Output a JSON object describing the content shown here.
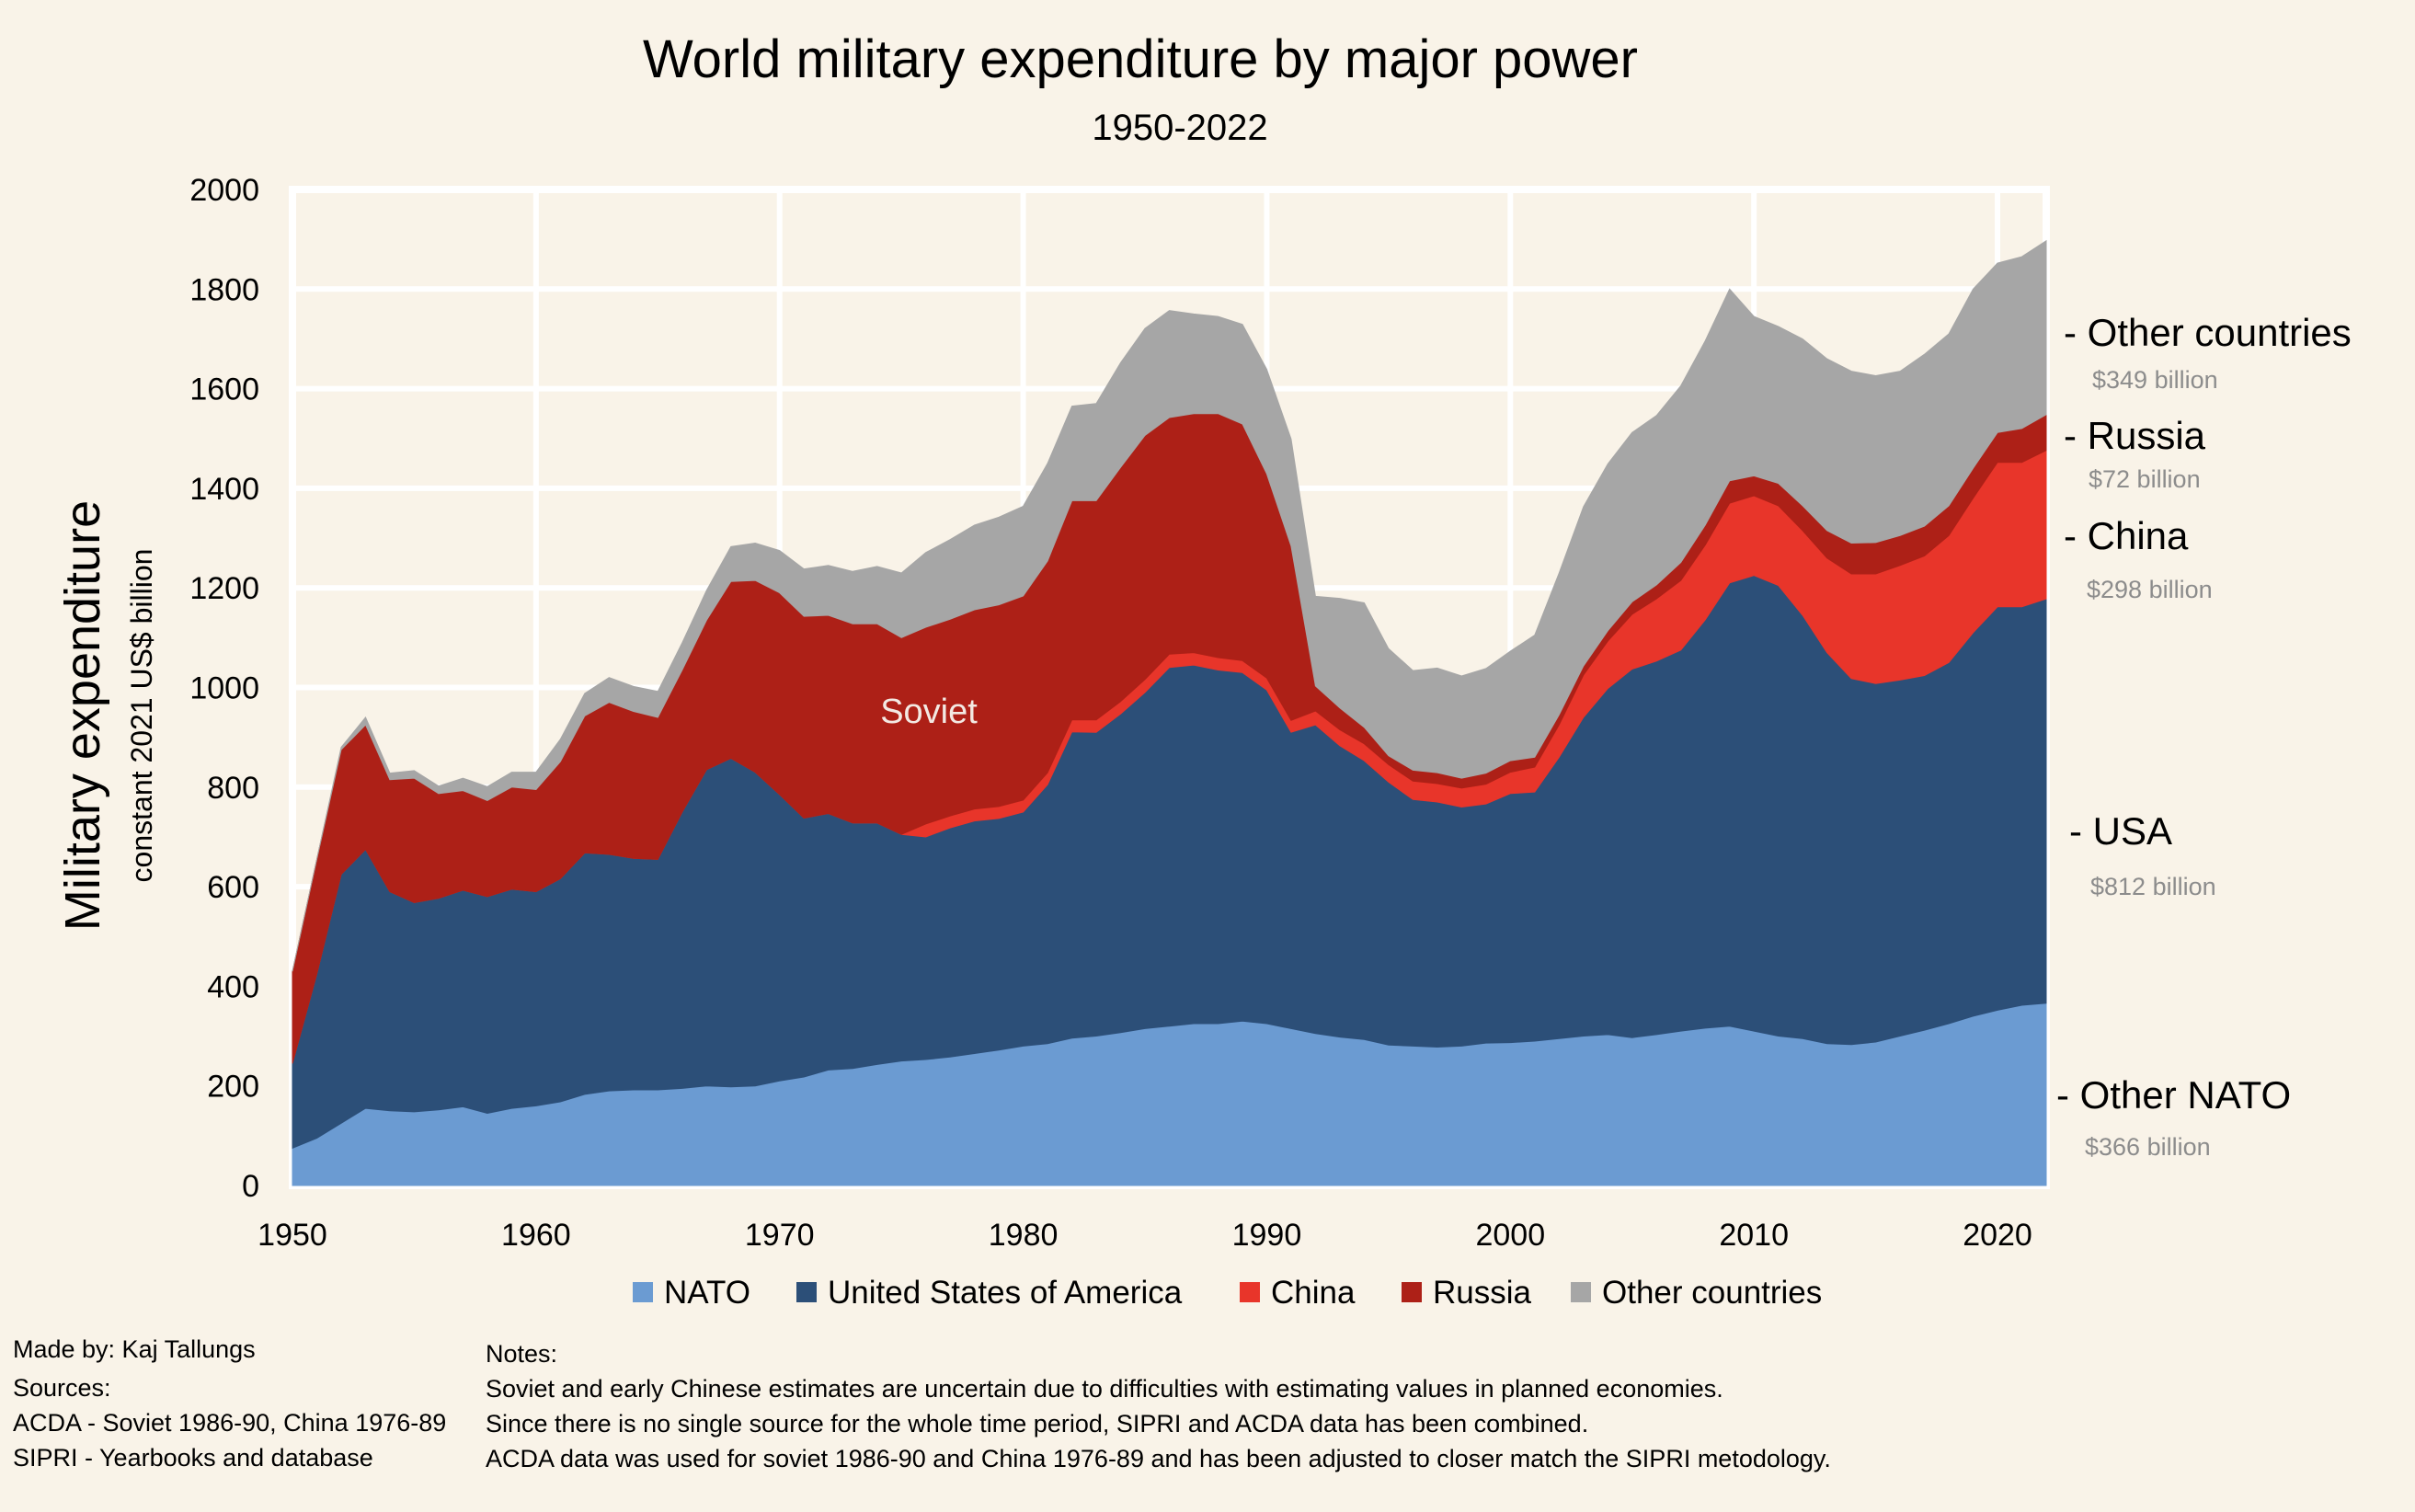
{
  "chart_data": {
    "type": "area",
    "stacked": true,
    "title": "World military expenditure by major power",
    "subtitle": "1950-2022",
    "ylabel": "Military expenditure",
    "ylabel_sub": "constant 2021 US$ billion",
    "xlabel": "",
    "xlim": [
      1950,
      2022
    ],
    "ylim": [
      0,
      2000
    ],
    "x_ticks": [
      1950,
      1960,
      1970,
      1980,
      1990,
      2000,
      2010,
      2020
    ],
    "y_ticks": [
      0,
      200,
      400,
      600,
      800,
      1000,
      1200,
      1400,
      1600,
      1800,
      2000
    ],
    "grid": true,
    "legend_position": "bottom",
    "annotation_soviet": "Soviet",
    "x": [
      1950,
      1951,
      1952,
      1953,
      1954,
      1955,
      1956,
      1957,
      1958,
      1959,
      1960,
      1961,
      1962,
      1963,
      1964,
      1965,
      1966,
      1967,
      1968,
      1969,
      1970,
      1971,
      1972,
      1973,
      1974,
      1975,
      1976,
      1977,
      1978,
      1979,
      1980,
      1981,
      1982,
      1983,
      1984,
      1985,
      1986,
      1987,
      1988,
      1989,
      1990,
      1991,
      1992,
      1993,
      1994,
      1995,
      1996,
      1997,
      1998,
      1999,
      2000,
      2001,
      2002,
      2003,
      2004,
      2005,
      2006,
      2007,
      2008,
      2009,
      2010,
      2011,
      2012,
      2013,
      2014,
      2015,
      2016,
      2017,
      2018,
      2019,
      2020,
      2021,
      2022
    ],
    "series": [
      {
        "name": "NATO",
        "color": "#6b9bd2",
        "values": [
          75,
          95,
          125,
          155,
          150,
          148,
          152,
          158,
          145,
          155,
          160,
          168,
          183,
          190,
          192,
          192,
          195,
          200,
          198,
          200,
          210,
          218,
          232,
          235,
          243,
          250,
          253,
          258,
          265,
          272,
          280,
          285,
          296,
          300,
          307,
          315,
          320,
          325,
          325,
          330,
          325,
          315,
          305,
          298,
          293,
          282,
          280,
          278,
          280,
          286,
          287,
          290,
          295,
          300,
          303,
          297,
          303,
          310,
          316,
          320,
          310,
          300,
          295,
          285,
          283,
          288,
          300,
          312,
          325,
          340,
          352,
          362,
          366
        ]
      },
      {
        "name": "United States of America",
        "color": "#2c4f78",
        "values": [
          170,
          330,
          500,
          520,
          440,
          420,
          425,
          435,
          435,
          440,
          430,
          448,
          485,
          475,
          465,
          463,
          555,
          635,
          660,
          630,
          575,
          520,
          515,
          493,
          485,
          455,
          447,
          460,
          467,
          465,
          470,
          520,
          615,
          610,
          640,
          675,
          720,
          720,
          710,
          700,
          670,
          595,
          620,
          585,
          560,
          528,
          495,
          492,
          480,
          480,
          500,
          500,
          565,
          640,
          695,
          740,
          750,
          765,
          820,
          890,
          915,
          905,
          850,
          785,
          735,
          720,
          715,
          712,
          725,
          770,
          810,
          800,
          812
        ]
      },
      {
        "name": "China",
        "color": "#e8352a",
        "values": [
          0,
          0,
          0,
          0,
          0,
          0,
          0,
          0,
          0,
          0,
          0,
          0,
          0,
          0,
          0,
          0,
          0,
          0,
          0,
          0,
          0,
          0,
          0,
          0,
          0,
          0,
          26,
          24,
          24,
          24,
          24,
          24,
          24,
          25,
          25,
          26,
          27,
          25,
          25,
          24,
          24,
          24,
          28,
          32,
          34,
          35,
          37,
          37,
          38,
          40,
          43,
          50,
          65,
          85,
          95,
          110,
          125,
          140,
          150,
          160,
          160,
          160,
          170,
          190,
          210,
          220,
          230,
          240,
          255,
          270,
          290,
          290,
          298
        ]
      },
      {
        "name": "Russia",
        "color": "#ad2017",
        "values": [
          185,
          230,
          250,
          250,
          225,
          250,
          210,
          200,
          193,
          205,
          205,
          235,
          275,
          305,
          295,
          285,
          285,
          300,
          355,
          385,
          405,
          405,
          398,
          400,
          400,
          395,
          395,
          395,
          400,
          405,
          410,
          425,
          440,
          440,
          470,
          490,
          475,
          480,
          490,
          475,
          410,
          350,
          50,
          44,
          33,
          18,
          22,
          22,
          20,
          22,
          23,
          20,
          20,
          18,
          21,
          25,
          28,
          36,
          40,
          45,
          40,
          45,
          50,
          55,
          62,
          63,
          60,
          60,
          60,
          60,
          60,
          68,
          72
        ]
      },
      {
        "name": "Other countries",
        "color": "#a6a6a6",
        "values": [
          0,
          0,
          5,
          15,
          13,
          15,
          15,
          25,
          28,
          30,
          35,
          45,
          45,
          50,
          50,
          52,
          55,
          60,
          70,
          75,
          85,
          95,
          100,
          105,
          115,
          130,
          150,
          160,
          170,
          176,
          180,
          196,
          190,
          195,
          210,
          215,
          215,
          200,
          195,
          200,
          210,
          215,
          180,
          220,
          250,
          215,
          200,
          210,
          205,
          210,
          220,
          245,
          285,
          320,
          335,
          340,
          340,
          355,
          370,
          385,
          320,
          315,
          335,
          345,
          345,
          335,
          330,
          345,
          345,
          360,
          340,
          345,
          349
        ]
      }
    ],
    "right_annotations": [
      {
        "label": "- Other countries",
        "value": "$349 billion"
      },
      {
        "label": "- Russia",
        "value": "$72 billion"
      },
      {
        "label": "- China",
        "value": "$298 billion"
      },
      {
        "label": "- USA",
        "value": "$812 billion"
      },
      {
        "label": "- Other NATO",
        "value": "$366 billion"
      }
    ]
  },
  "footer": {
    "made_by": "Made by: Kaj Tallungs",
    "sources_title": "Sources:",
    "sources": [
      "ACDA - Soviet 1986-90, China 1976-89",
      "SIPRI - Yearbooks and database"
    ],
    "notes_title": "Notes:",
    "notes": [
      "Soviet and early Chinese estimates are uncertain due to difficulties with estimating values in planned economies.",
      "Since there is no single source for the whole time period, SIPRI and ACDA data has been combined.",
      "ACDA data was used for soviet 1986-90 and China 1976-89 and has been adjusted to closer match the SIPRI metodology."
    ]
  }
}
